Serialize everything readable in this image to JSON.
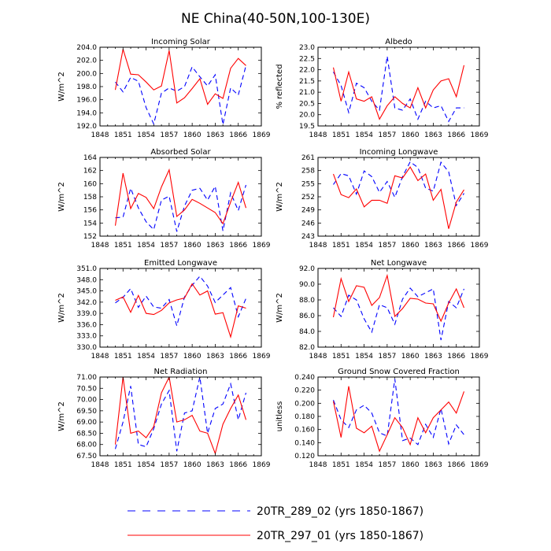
{
  "title": "NE China(40-50N,100-130E)",
  "colors": {
    "series_blue": "#0000ff",
    "series_red": "#ff0000",
    "axis": "#000000"
  },
  "legend": {
    "entries": [
      {
        "label": "20TR_289_02 (yrs 1850-1867)",
        "style": "dashed",
        "color": "#0000ff"
      },
      {
        "label": "20TR_297_01 (yrs 1850-1867)",
        "style": "solid",
        "color": "#ff0000"
      }
    ]
  },
  "chart_data": [
    {
      "type": "line",
      "title": "Incoming Solar",
      "ylabel": "W/m^2",
      "xlim": [
        1848,
        1869
      ],
      "ylim": [
        192.0,
        204.0
      ],
      "xticks": [
        1848,
        1851,
        1854,
        1857,
        1860,
        1863,
        1866,
        1869
      ],
      "yticks": [
        "192.0",
        "194.0",
        "196.0",
        "198.0",
        "200.0",
        "202.0",
        "204.0"
      ],
      "x": [
        1850,
        1851,
        1852,
        1853,
        1854,
        1855,
        1856,
        1857,
        1858,
        1859,
        1860,
        1861,
        1862,
        1863,
        1864,
        1865,
        1866,
        1867
      ],
      "series": [
        {
          "name": "20TR_289_02 (yrs 1850-1867)",
          "values": [
            198.7,
            197.2,
            199.4,
            198.8,
            194.8,
            192.3,
            197.0,
            197.8,
            197.3,
            198.0,
            201.0,
            199.5,
            198.1,
            199.8,
            192.2,
            197.8,
            196.7,
            201.2
          ]
        },
        {
          "name": "20TR_297_01 (yrs 1850-1867)",
          "values": [
            197.5,
            203.7,
            199.9,
            199.8,
            198.7,
            197.5,
            198.1,
            203.5,
            195.5,
            196.3,
            197.7,
            199.2,
            195.3,
            196.9,
            196.2,
            200.8,
            202.3,
            201.2
          ]
        }
      ]
    },
    {
      "type": "line",
      "title": "Albedo",
      "ylabel": "% reflected",
      "xlim": [
        1848,
        1869
      ],
      "ylim": [
        19.5,
        23.0
      ],
      "xticks": [
        1848,
        1851,
        1854,
        1857,
        1860,
        1863,
        1866,
        1869
      ],
      "yticks": [
        "19.5",
        "20.0",
        "20.5",
        "21.0",
        "21.5",
        "22.0",
        "22.5",
        "23.0"
      ],
      "x": [
        1850,
        1851,
        1852,
        1853,
        1854,
        1855,
        1856,
        1857,
        1858,
        1859,
        1860,
        1861,
        1862,
        1863,
        1864,
        1865,
        1866,
        1867
      ],
      "series": [
        {
          "name": "20TR_289_02 (yrs 1850-1867)",
          "values": [
            21.9,
            21.3,
            20.1,
            21.4,
            21.2,
            20.6,
            20.2,
            22.6,
            20.3,
            20.2,
            20.7,
            19.8,
            20.6,
            20.3,
            20.4,
            19.7,
            20.3,
            20.3
          ]
        },
        {
          "name": "20TR_297_01 (yrs 1850-1867)",
          "values": [
            22.1,
            20.6,
            21.9,
            20.7,
            20.6,
            20.8,
            19.8,
            20.4,
            20.8,
            20.5,
            20.3,
            21.2,
            20.3,
            21.1,
            21.5,
            21.6,
            20.8,
            22.2
          ]
        }
      ]
    },
    {
      "type": "line",
      "title": "Absorbed Solar",
      "ylabel": "W/m^2",
      "xlim": [
        1848,
        1869
      ],
      "ylim": [
        152,
        164
      ],
      "xticks": [
        1848,
        1851,
        1854,
        1857,
        1860,
        1863,
        1866,
        1869
      ],
      "yticks": [
        "152",
        "154",
        "156",
        "158",
        "160",
        "162",
        "164"
      ],
      "x": [
        1850,
        1851,
        1852,
        1853,
        1854,
        1855,
        1856,
        1857,
        1858,
        1859,
        1860,
        1861,
        1862,
        1863,
        1864,
        1865,
        1866,
        1867
      ],
      "series": [
        {
          "name": "20TR_289_02 (yrs 1850-1867)",
          "values": [
            154.8,
            154.9,
            159.3,
            156.3,
            154.2,
            153.0,
            157.5,
            158.1,
            152.7,
            156.6,
            159.0,
            159.3,
            157.5,
            159.6,
            152.8,
            158.6,
            155.9,
            159.8
          ]
        },
        {
          "name": "20TR_297_01 (yrs 1850-1867)",
          "values": [
            153.6,
            161.6,
            156.2,
            158.5,
            157.9,
            156.2,
            159.5,
            162.1,
            155.0,
            156.0,
            157.6,
            157.0,
            156.3,
            155.6,
            153.9,
            157.2,
            160.2,
            156.3
          ]
        }
      ]
    },
    {
      "type": "line",
      "title": "Incoming Longwave",
      "ylabel": "W/m^2",
      "xlim": [
        1848,
        1869
      ],
      "ylim": [
        243,
        261
      ],
      "xticks": [
        1848,
        1851,
        1854,
        1857,
        1860,
        1863,
        1866,
        1869
      ],
      "yticks": [
        "243",
        "246",
        "249",
        "252",
        "255",
        "258",
        "261"
      ],
      "x": [
        1850,
        1851,
        1852,
        1853,
        1854,
        1855,
        1856,
        1857,
        1858,
        1859,
        1860,
        1861,
        1862,
        1863,
        1864,
        1865,
        1866,
        1867
      ],
      "series": [
        {
          "name": "20TR_289_02 (yrs 1850-1867)",
          "values": [
            254.8,
            257.3,
            256.8,
            252.6,
            257.9,
            256.6,
            253.0,
            255.5,
            251.9,
            256.6,
            260.0,
            258.7,
            254.0,
            253.3,
            259.9,
            257.7,
            250.0,
            252.8
          ]
        },
        {
          "name": "20TR_297_01 (yrs 1850-1867)",
          "values": [
            257.2,
            252.5,
            251.8,
            253.8,
            249.7,
            251.2,
            251.2,
            250.5,
            256.8,
            256.3,
            258.8,
            255.7,
            257.2,
            251.2,
            253.7,
            244.7,
            250.8,
            253.6
          ]
        }
      ]
    },
    {
      "type": "line",
      "title": "Emitted Longwave",
      "ylabel": "W/m^2",
      "xlim": [
        1848,
        1869
      ],
      "ylim": [
        330.0,
        351.0
      ],
      "xticks": [
        1848,
        1851,
        1854,
        1857,
        1860,
        1863,
        1866,
        1869
      ],
      "yticks": [
        "330.0",
        "333.0",
        "336.0",
        "339.0",
        "342.0",
        "345.0",
        "348.0",
        "351.0"
      ],
      "x": [
        1850,
        1851,
        1852,
        1853,
        1854,
        1855,
        1856,
        1857,
        1858,
        1859,
        1860,
        1861,
        1862,
        1863,
        1864,
        1865,
        1866,
        1867
      ],
      "series": [
        {
          "name": "20TR_289_02 (yrs 1850-1867)",
          "values": [
            341.8,
            343.3,
            345.6,
            340.6,
            343.6,
            340.7,
            340.4,
            342.7,
            335.7,
            343.4,
            346.5,
            348.9,
            346.3,
            341.9,
            343.9,
            345.9,
            338.1,
            343.0
          ]
        },
        {
          "name": "20TR_297_01 (yrs 1850-1867)",
          "values": [
            342.5,
            343.4,
            339.3,
            343.8,
            339.0,
            338.7,
            339.8,
            341.8,
            342.6,
            343.1,
            346.9,
            343.9,
            345.0,
            338.8,
            339.2,
            332.7,
            341.0,
            340.4
          ]
        }
      ]
    },
    {
      "type": "line",
      "title": "Net Longwave",
      "ylabel": "W/m^2",
      "xlim": [
        1848,
        1869
      ],
      "ylim": [
        82.0,
        92.0
      ],
      "xticks": [
        1848,
        1851,
        1854,
        1857,
        1860,
        1863,
        1866,
        1869
      ],
      "yticks": [
        "82.0",
        "84.0",
        "86.0",
        "88.0",
        "90.0",
        "92.0"
      ],
      "x": [
        1850,
        1851,
        1852,
        1853,
        1854,
        1855,
        1856,
        1857,
        1858,
        1859,
        1860,
        1861,
        1862,
        1863,
        1864,
        1865,
        1866,
        1867
      ],
      "series": [
        {
          "name": "20TR_289_02 (yrs 1850-1867)",
          "values": [
            87.0,
            85.9,
            88.6,
            88.0,
            85.6,
            83.9,
            87.4,
            87.0,
            84.9,
            88.1,
            89.5,
            88.4,
            88.9,
            89.4,
            82.9,
            87.8,
            87.0,
            89.4
          ]
        },
        {
          "name": "20TR_297_01 (yrs 1850-1867)",
          "values": [
            85.8,
            90.7,
            87.8,
            89.8,
            89.6,
            87.3,
            88.3,
            91.1,
            85.9,
            86.9,
            88.2,
            88.1,
            87.6,
            87.5,
            85.3,
            87.6,
            89.4,
            87.0
          ]
        }
      ]
    },
    {
      "type": "line",
      "title": "Net Radiation",
      "ylabel": "W/m^2",
      "xlim": [
        1848,
        1869
      ],
      "ylim": [
        67.5,
        71.0
      ],
      "xticks": [
        1848,
        1851,
        1854,
        1857,
        1860,
        1863,
        1866,
        1869
      ],
      "yticks": [
        "67.50",
        "68.00",
        "68.50",
        "69.00",
        "69.50",
        "70.00",
        "70.50",
        "71.00"
      ],
      "x": [
        1850,
        1851,
        1852,
        1853,
        1854,
        1855,
        1856,
        1857,
        1858,
        1859,
        1860,
        1861,
        1862,
        1863,
        1864,
        1865,
        1866,
        1867
      ],
      "series": [
        {
          "name": "20TR_289_02 (yrs 1850-1867)",
          "values": [
            67.8,
            69.0,
            70.6,
            68.0,
            67.9,
            68.7,
            69.8,
            70.4,
            67.7,
            69.4,
            69.5,
            71.0,
            68.5,
            69.6,
            69.8,
            70.7,
            69.1,
            70.3
          ]
        },
        {
          "name": "20TR_297_01 (yrs 1850-1867)",
          "values": [
            68.0,
            71.0,
            68.5,
            68.6,
            68.3,
            68.8,
            70.3,
            71.0,
            69.0,
            69.1,
            69.3,
            68.6,
            68.5,
            67.6,
            68.9,
            69.6,
            70.2,
            69.1
          ]
        }
      ]
    },
    {
      "type": "line",
      "title": "Ground Snow Covered Fraction",
      "ylabel": "unitless",
      "xlim": [
        1848,
        1869
      ],
      "ylim": [
        0.12,
        0.24
      ],
      "xticks": [
        1848,
        1851,
        1854,
        1857,
        1860,
        1863,
        1866,
        1869
      ],
      "yticks": [
        "0.120",
        "0.140",
        "0.160",
        "0.180",
        "0.200",
        "0.220",
        "0.240"
      ],
      "x": [
        1850,
        1851,
        1852,
        1853,
        1854,
        1855,
        1856,
        1857,
        1858,
        1859,
        1860,
        1861,
        1862,
        1863,
        1864,
        1865,
        1866,
        1867
      ],
      "series": [
        {
          "name": "20TR_289_02 (yrs 1850-1867)",
          "values": [
            0.205,
            0.175,
            0.163,
            0.19,
            0.197,
            0.185,
            0.155,
            0.15,
            0.237,
            0.143,
            0.147,
            0.137,
            0.168,
            0.148,
            0.192,
            0.138,
            0.167,
            0.152
          ]
        },
        {
          "name": "20TR_297_01 (yrs 1850-1867)",
          "values": [
            0.203,
            0.148,
            0.226,
            0.162,
            0.155,
            0.165,
            0.127,
            0.152,
            0.178,
            0.163,
            0.137,
            0.178,
            0.155,
            0.178,
            0.19,
            0.202,
            0.185,
            0.218
          ]
        }
      ]
    }
  ]
}
